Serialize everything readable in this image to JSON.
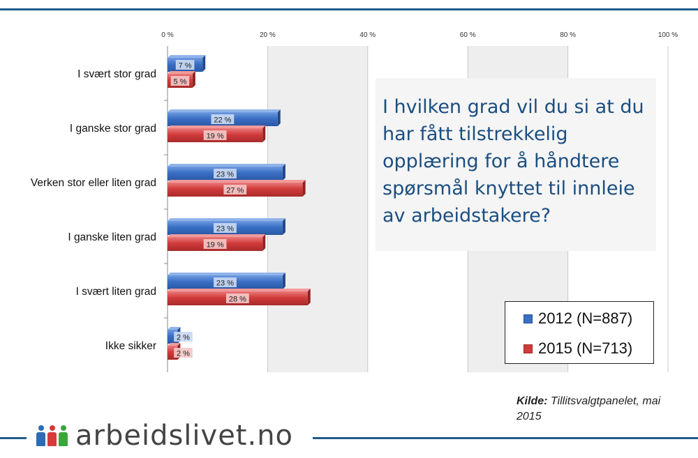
{
  "chart_data": {
    "type": "bar",
    "orientation": "horizontal",
    "categories": [
      "I svært stor grad",
      "I ganske stor grad",
      "Verken stor eller liten grad",
      "I ganske liten grad",
      "I svært liten grad",
      "Ikke sikker"
    ],
    "series": [
      {
        "name": "2012 (N=887)",
        "values": [
          7,
          22,
          23,
          23,
          23,
          2
        ],
        "labels": [
          "7 %",
          "22 %",
          "23 %",
          "23 %",
          "23 %",
          "2 %"
        ],
        "color": "#3a6fc4"
      },
      {
        "name": "2015 (N=713)",
        "values": [
          5,
          19,
          27,
          19,
          28,
          2
        ],
        "labels": [
          "5 %",
          "19 %",
          "27 %",
          "19 %",
          "28 %",
          "2 %"
        ],
        "color": "#d13b3b"
      }
    ],
    "xlim": [
      0,
      100
    ],
    "ticks": [
      0,
      20,
      40,
      60,
      80,
      100
    ],
    "tick_labels": [
      "0 %",
      "20 %",
      "40 %",
      "60 %",
      "80 %",
      "100 %"
    ],
    "grid": true,
    "legend_position": "bottom-right"
  },
  "question": "I hvilken grad vil du si at du har fått tilstrekkelig opplæring for å håndtere spørsmål knyttet til innleie av arbeidstakere?",
  "source": {
    "label": "Kilde:",
    "text": "Tillitsvalgtpanelet, mai 2015"
  },
  "logo": {
    "text": "arbeidslivet.no",
    "colors": [
      "#2b6cb5",
      "#d63a3a",
      "#3aa53a"
    ]
  }
}
